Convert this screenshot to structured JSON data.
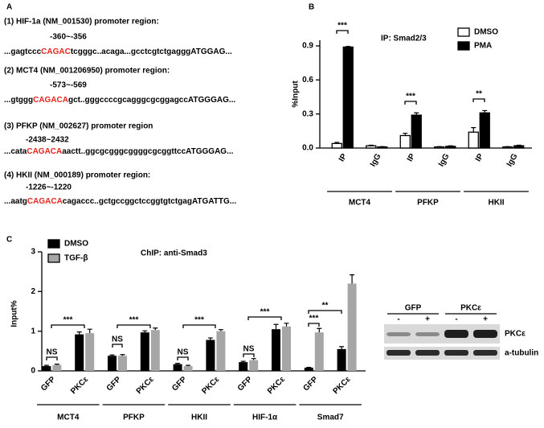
{
  "panel_a": {
    "label": "A",
    "promoters": [
      {
        "title": "(1) HIF-1a (NM_001530) promoter region:",
        "position": "-360~-356",
        "before": "...gagtccc",
        "motif": "CAGAC",
        "after": "tcgggc..acaga...gcctcgtctgagggATGGAG..."
      },
      {
        "title": "(2) MCT4 (NM_001206950) promoter region:",
        "position": "-573~-569",
        "before": "...gtggg",
        "motif": "CAGACA",
        "after": "gct..gggccccgcagggcgcggagccATGGGAG..."
      },
      {
        "title": "(3) PFKP (NM_002627) promoter region",
        "position": "-2438~2432",
        "before": "...cata",
        "motif": "CAGACA",
        "after": "aactt..ggcgcgggcggggcgcggttccATGGGAG..."
      },
      {
        "title": "(4) HKII (NM_000189) promoter region:",
        "position": "-1226~-1220",
        "before": "...aatg",
        "motif": "CAGACA",
        "after": "cagaccc..gctgccggctccggtgtctgagATGATTG..."
      }
    ]
  },
  "chart_data": [
    {
      "panel_label": "B",
      "type": "bar",
      "annotation": "IP: Smad2/3",
      "y_label": "%Input",
      "categories": [
        "IP",
        "IgG",
        "IP",
        "IgG",
        "IP",
        "IgG"
      ],
      "groups": [
        "MCT4",
        "PFKP",
        "HKII"
      ],
      "series": [
        {
          "name": "DMSO",
          "color": "#ffffff",
          "values": [
            0.04,
            0.02,
            0.11,
            0.01,
            0.14,
            0.01
          ],
          "errors": [
            0.01,
            0.005,
            0.02,
            0.003,
            0.04,
            0.003
          ]
        },
        {
          "name": "PMA",
          "color": "#000000",
          "values": [
            0.89,
            0.01,
            0.29,
            0.015,
            0.31,
            0.02
          ],
          "errors": [
            0.005,
            0.003,
            0.02,
            0.005,
            0.02,
            0.005
          ]
        }
      ],
      "ylim": [
        0,
        0.95
      ],
      "yticks": [
        {
          "value": 0,
          "label": "0.0"
        },
        0.3,
        0.6,
        0.9
      ],
      "significance": [
        "***",
        "***",
        "**"
      ]
    },
    {
      "panel_label": "C",
      "type": "bar",
      "annotation": "ChIP: anti-Smad3",
      "y_label": "Input%",
      "categories": [
        "GFP",
        "PKCε",
        "GFP",
        "PKCε",
        "GFP",
        "PKCε",
        "GFP",
        "PKCε",
        "GFP",
        "PKCε"
      ],
      "groups": [
        "MCT4",
        "PFKP",
        "HKII",
        "HIF-1α",
        "Smad7"
      ],
      "series": [
        {
          "name": "DMSO",
          "color": "#000000",
          "values": [
            0.12,
            0.92,
            0.38,
            0.97,
            0.17,
            0.78,
            0.22,
            1.05,
            0.08,
            0.55
          ],
          "errors": [
            0.02,
            0.06,
            0.02,
            0.04,
            0.02,
            0.05,
            0.02,
            0.12,
            0.01,
            0.06
          ]
        },
        {
          "name": "TGF-β",
          "color": "#a6a6a6",
          "values": [
            0.15,
            0.95,
            0.38,
            1.03,
            0.12,
            1.0,
            0.27,
            1.12,
            0.97,
            2.2
          ],
          "errors": [
            0.02,
            0.1,
            0.03,
            0.05,
            0.02,
            0.04,
            0.04,
            0.08,
            0.1,
            0.22
          ]
        }
      ],
      "ylim": [
        0,
        3
      ],
      "yticks": [
        0,
        1,
        2,
        3
      ],
      "significance": [
        "NS",
        "***",
        "NS",
        "***",
        "NS",
        "***",
        "NS",
        "***",
        "***",
        "**"
      ]
    }
  ],
  "blot": {
    "columns": [
      "GFP",
      "PKCε"
    ],
    "lanes": [
      "-",
      "+",
      "-",
      "+"
    ],
    "rows": [
      "PKCε",
      "a-tubulin"
    ]
  }
}
